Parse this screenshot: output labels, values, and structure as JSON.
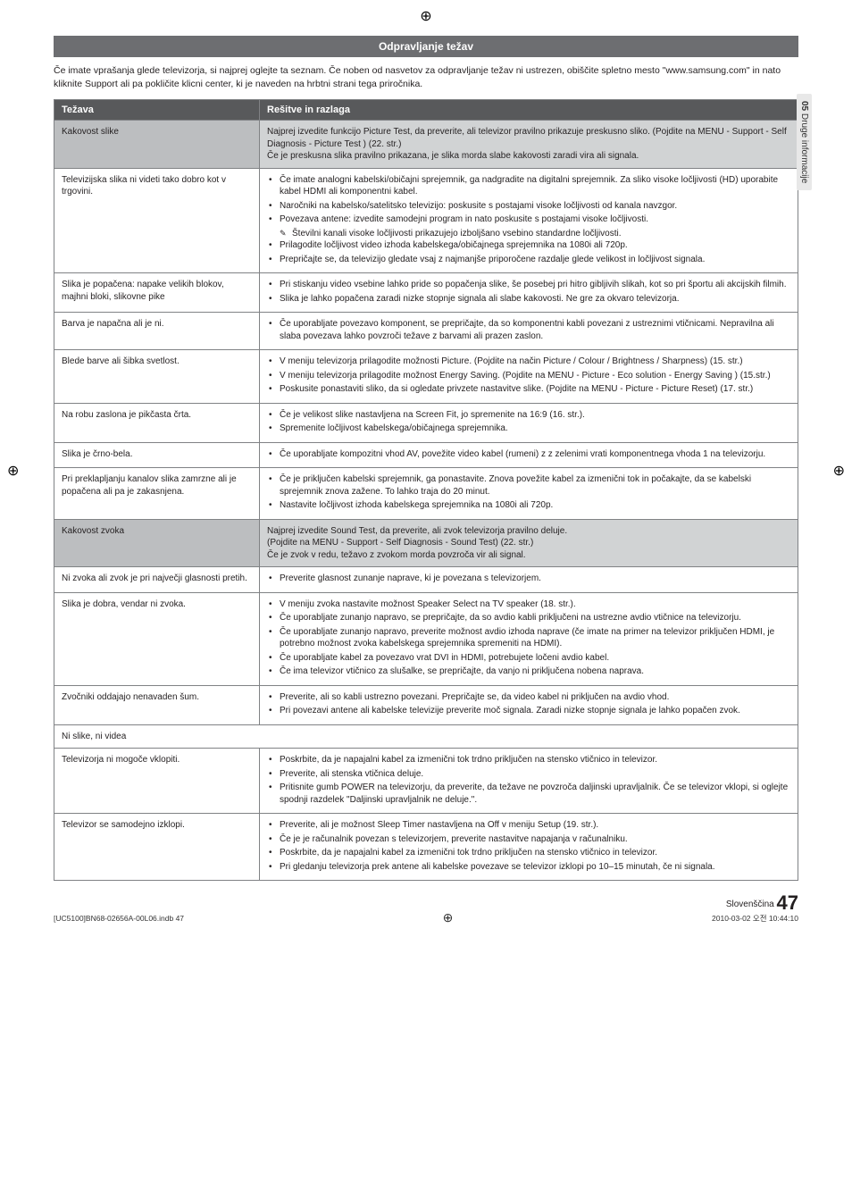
{
  "crop_glyph": "⊕",
  "side_tab": {
    "num": "05",
    "label": "Druge informacije"
  },
  "header": "Odpravljanje težav",
  "intro": "Če imate vprašanja glede televizorja, si najprej oglejte ta seznam. Če noben od nasvetov za odpravljanje težav ni ustrezen, obiščite spletno mesto \"www.samsung.com\" in nato kliknite Support ali pa pokličite klicni center, ki je naveden na hrbtni strani tega priročnika.",
  "col1": "Težava",
  "col2": "Rešitve in razlaga",
  "rows": {
    "r1": {
      "left": "Kakovost slike",
      "right_l1": "Najprej izvedite funkcijo Picture Test, da preverite, ali televizor pravilno prikazuje preskusno sliko. (Pojdite na MENU - Support - Self Diagnosis - Picture Test ) (22. str.)",
      "right_l2": "Če je preskusna slika pravilno prikazana, je slika morda slabe kakovosti zaradi vira ali signala."
    },
    "r2": {
      "left": "Televizijska slika ni videti tako dobro kot v trgovini.",
      "b1": "Če imate analogni kabelski/običajni sprejemnik, ga nadgradite na digitalni sprejemnik. Za sliko visoke ločljivosti (HD) uporabite kabel HDMI ali komponentni kabel.",
      "b2": "Naročniki na kabelsko/satelitsko televizijo: poskusite s postajami visoke ločljivosti od kanala navzgor.",
      "b3": "Povezava antene: izvedite samodejni program in nato poskusite s postajami visoke ločljivosti.",
      "sub": "Številni kanali visoke ločljivosti prikazujejo izboljšano vsebino standardne ločljivosti.",
      "b4": "Prilagodite ločljivost video izhoda kabelskega/običajnega sprejemnika na 1080i ali 720p.",
      "b5": "Prepričajte se, da televizijo gledate vsaj z najmanjše priporočene razdalje glede velikost in ločljivost signala."
    },
    "r3": {
      "left": "Slika je popačena: napake velikih blokov, majhni bloki, slikovne pike",
      "b1": "Pri stiskanju video vsebine lahko pride so popačenja slike, še posebej pri hitro gibljivih slikah, kot so pri športu ali akcijskih filmih.",
      "b2": "Slika je lahko popačena zaradi nizke stopnje signala ali slabe kakovosti. Ne gre za okvaro televizorja."
    },
    "r4": {
      "left": "Barva je napačna ali je ni.",
      "b1": "Če uporabljate povezavo komponent, se prepričajte, da so komponentni kabli povezani z ustreznimi vtičnicami. Nepravilna ali slaba povezava lahko povzroči težave z barvami ali prazen zaslon."
    },
    "r5": {
      "left": "Blede barve ali šibka svetlost.",
      "b1": "V meniju televizorja prilagodite možnosti Picture. (Pojdite na način Picture / Colour / Brightness / Sharpness) (15. str.)",
      "b2": "V meniju televizorja prilagodite možnost Energy Saving. (Pojdite na MENU - Picture - Eco solution - Energy Saving ) (15.str.)",
      "b3": "Poskusite ponastaviti sliko, da si ogledate privzete nastavitve slike. (Pojdite na MENU - Picture - Picture Reset) (17. str.)"
    },
    "r6": {
      "left": "Na robu zaslona je pikčasta črta.",
      "b1": "Če je velikost slike nastavljena na Screen Fit, jo spremenite na 16:9 (16. str.).",
      "b2": "Spremenite ločljivost kabelskega/običajnega sprejemnika."
    },
    "r7": {
      "left": "Slika je črno-bela.",
      "b1": "Če uporabljate kompozitni vhod AV, povežite video kabel (rumeni) z z zelenimi vrati komponentnega vhoda 1 na televizorju."
    },
    "r8": {
      "left": "Pri preklapljanju kanalov slika zamrzne ali je popačena ali pa je zakasnjena.",
      "b1": "Če je priključen kabelski sprejemnik, ga ponastavite. Znova povežite kabel za izmenični tok in počakajte, da se kabelski sprejemnik znova zažene. To lahko traja do 20 minut.",
      "b2": "Nastavite ločljivost izhoda kabelskega sprejemnika na 1080i ali 720p."
    },
    "r9": {
      "left": "Kakovost zvoka",
      "right_l1": "Najprej izvedite Sound Test, da preverite, ali zvok televizorja pravilno deluje.",
      "right_l2": "(Pojdite na MENU - Support - Self Diagnosis - Sound Test) (22. str.)",
      "right_l3": "Če je zvok v redu, težavo z zvokom morda povzroča vir ali signal."
    },
    "r10": {
      "left": "Ni zvoka ali zvok je pri največji glasnosti pretih.",
      "b1": "Preverite glasnost zunanje naprave, ki je povezana s televizorjem."
    },
    "r11": {
      "left": "Slika je dobra, vendar ni zvoka.",
      "b1": "V meniju zvoka nastavite možnost Speaker Select na TV speaker (18. str.).",
      "b2": "Če uporabljate zunanjo napravo, se prepričajte, da so avdio kabli priključeni na ustrezne avdio vtičnice na televizorju.",
      "b3": "Če uporabljate zunanjo napravo, preverite možnost avdio izhoda naprave (če imate na primer na televizor priključen HDMI, je potrebno možnost zvoka kabelskega sprejemnika spremeniti na HDMI).",
      "b4": "Če uporabljate kabel za povezavo vrat DVI in HDMI, potrebujete ločeni avdio kabel.",
      "b5": "Če ima televizor vtičnico za slušalke, se prepričajte, da vanjo ni priključena nobena naprava."
    },
    "r12": {
      "left": "Zvočniki oddajajo nenavaden šum.",
      "b1": "Preverite, ali so kabli ustrezno povezani. Prepričajte se, da video kabel ni priključen na avdio vhod.",
      "b2": "Pri povezavi antene ali kabelske televizije preverite moč signala. Zaradi nizke stopnje signala je lahko popačen zvok."
    },
    "r13": {
      "left": "Ni slike, ni videa"
    },
    "r14": {
      "left": "Televizorja ni mogoče vklopiti.",
      "b1": "Poskrbite, da je napajalni kabel za izmenični tok trdno priključen na stensko vtičnico in televizor.",
      "b2": "Preverite, ali stenska vtičnica deluje.",
      "b3": "Pritisnite gumb POWER na televizorju, da preverite, da težave ne povzroča daljinski upravljalnik. Če se televizor vklopi, si oglejte spodnji razdelek \"Daljinski upravljalnik ne deluje.\"."
    },
    "r15": {
      "left": "Televizor se samodejno izklopi.",
      "b1": "Preverite, ali je možnost Sleep Timer nastavljena na Off v meniju Setup (19. str.).",
      "b2": "Če je je računalnik povezan s televizorjem, preverite nastavitve napajanja v računalniku.",
      "b3": "Poskrbite, da je napajalni kabel za izmenični tok trdno priključen na stensko vtičnico in televizor.",
      "b4": "Pri gledanju televizorja prek antene ali kabelske povezave se televizor izklopi po 10–15 minutah, če ni signala."
    }
  },
  "footer": {
    "lang": "Slovenščina",
    "page": "47",
    "file": "[UC5100]BN68-02656A-00L06.indb   47",
    "time": "2010-03-02   오전 10:44:10"
  }
}
